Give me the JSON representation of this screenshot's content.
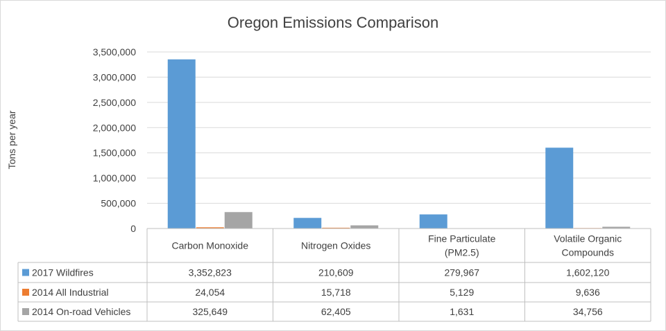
{
  "chart_data": {
    "type": "bar",
    "title": "Oregon Emissions Comparison",
    "ylabel": "Tons per year",
    "ylim": [
      0,
      3500000
    ],
    "yticks": [
      "0",
      "500,000",
      "1,000,000",
      "1,500,000",
      "2,000,000",
      "2,500,000",
      "3,000,000",
      "3,500,000"
    ],
    "ytick_values": [
      0,
      500000,
      1000000,
      1500000,
      2000000,
      2500000,
      3000000,
      3500000
    ],
    "categories": [
      [
        "Carbon Monoxide"
      ],
      [
        "Nitrogen Oxides"
      ],
      [
        "Fine Particulate",
        "(PM2.5)"
      ],
      [
        "Volatile Organic",
        "Compounds"
      ]
    ],
    "grid": true,
    "legend": "data-table",
    "series": [
      {
        "name": "2017 Wildfires",
        "color": "#5b9bd5",
        "values": [
          3352823,
          210609,
          279967,
          1602120
        ],
        "labels": [
          "3,352,823",
          "210,609",
          "279,967",
          "1,602,120"
        ]
      },
      {
        "name": "2014 All Industrial",
        "color": "#ed7d31",
        "values": [
          24054,
          15718,
          5129,
          9636
        ],
        "labels": [
          "24,054",
          "15,718",
          "5,129",
          "9,636"
        ]
      },
      {
        "name": "2014 On-road Vehicles",
        "color": "#a5a5a5",
        "values": [
          325649,
          62405,
          1631,
          34756
        ],
        "labels": [
          "325,649",
          "62,405",
          "1,631",
          "34,756"
        ]
      }
    ]
  }
}
